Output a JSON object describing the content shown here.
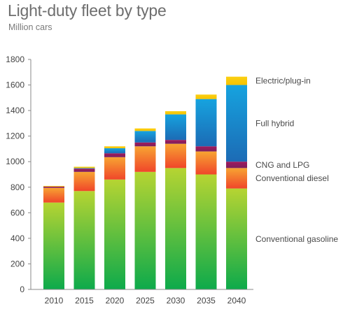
{
  "chart_data": {
    "type": "bar",
    "stacked": true,
    "title": "Light-duty fleet by type",
    "subtitle": "Million cars",
    "categories": [
      "2010",
      "2015",
      "2020",
      "2025",
      "2030",
      "2035",
      "2040"
    ],
    "ylim": [
      0,
      1800
    ],
    "yticks": [
      0,
      200,
      400,
      600,
      800,
      1000,
      1200,
      1400,
      1600,
      1800
    ],
    "grid": false,
    "legend_placement": "right, labels beside the 2040 bar",
    "series": [
      {
        "name": "Conventional gasoline",
        "color_top": "#b6d432",
        "color_bottom": "#0daa4b",
        "values": [
          680,
          770,
          860,
          920,
          950,
          900,
          790
        ]
      },
      {
        "name": "Conventional diesel",
        "color_top": "#f7a432",
        "color_bottom": "#f0462a",
        "values": [
          115,
          150,
          175,
          200,
          190,
          180,
          160
        ]
      },
      {
        "name": "CNG and LPG",
        "color_top": "#a3195b",
        "color_bottom": "#7b1f5e",
        "values": [
          10,
          25,
          30,
          30,
          30,
          40,
          50
        ]
      },
      {
        "name": "Full hybrid",
        "color_top": "#16a3df",
        "color_bottom": "#1c6bb5",
        "values": [
          0,
          5,
          40,
          90,
          200,
          370,
          600
        ]
      },
      {
        "name": "Electric/plug-in",
        "color_top": "#fbd014",
        "color_bottom": "#f6c200",
        "values": [
          5,
          10,
          15,
          20,
          25,
          35,
          65
        ]
      }
    ]
  }
}
